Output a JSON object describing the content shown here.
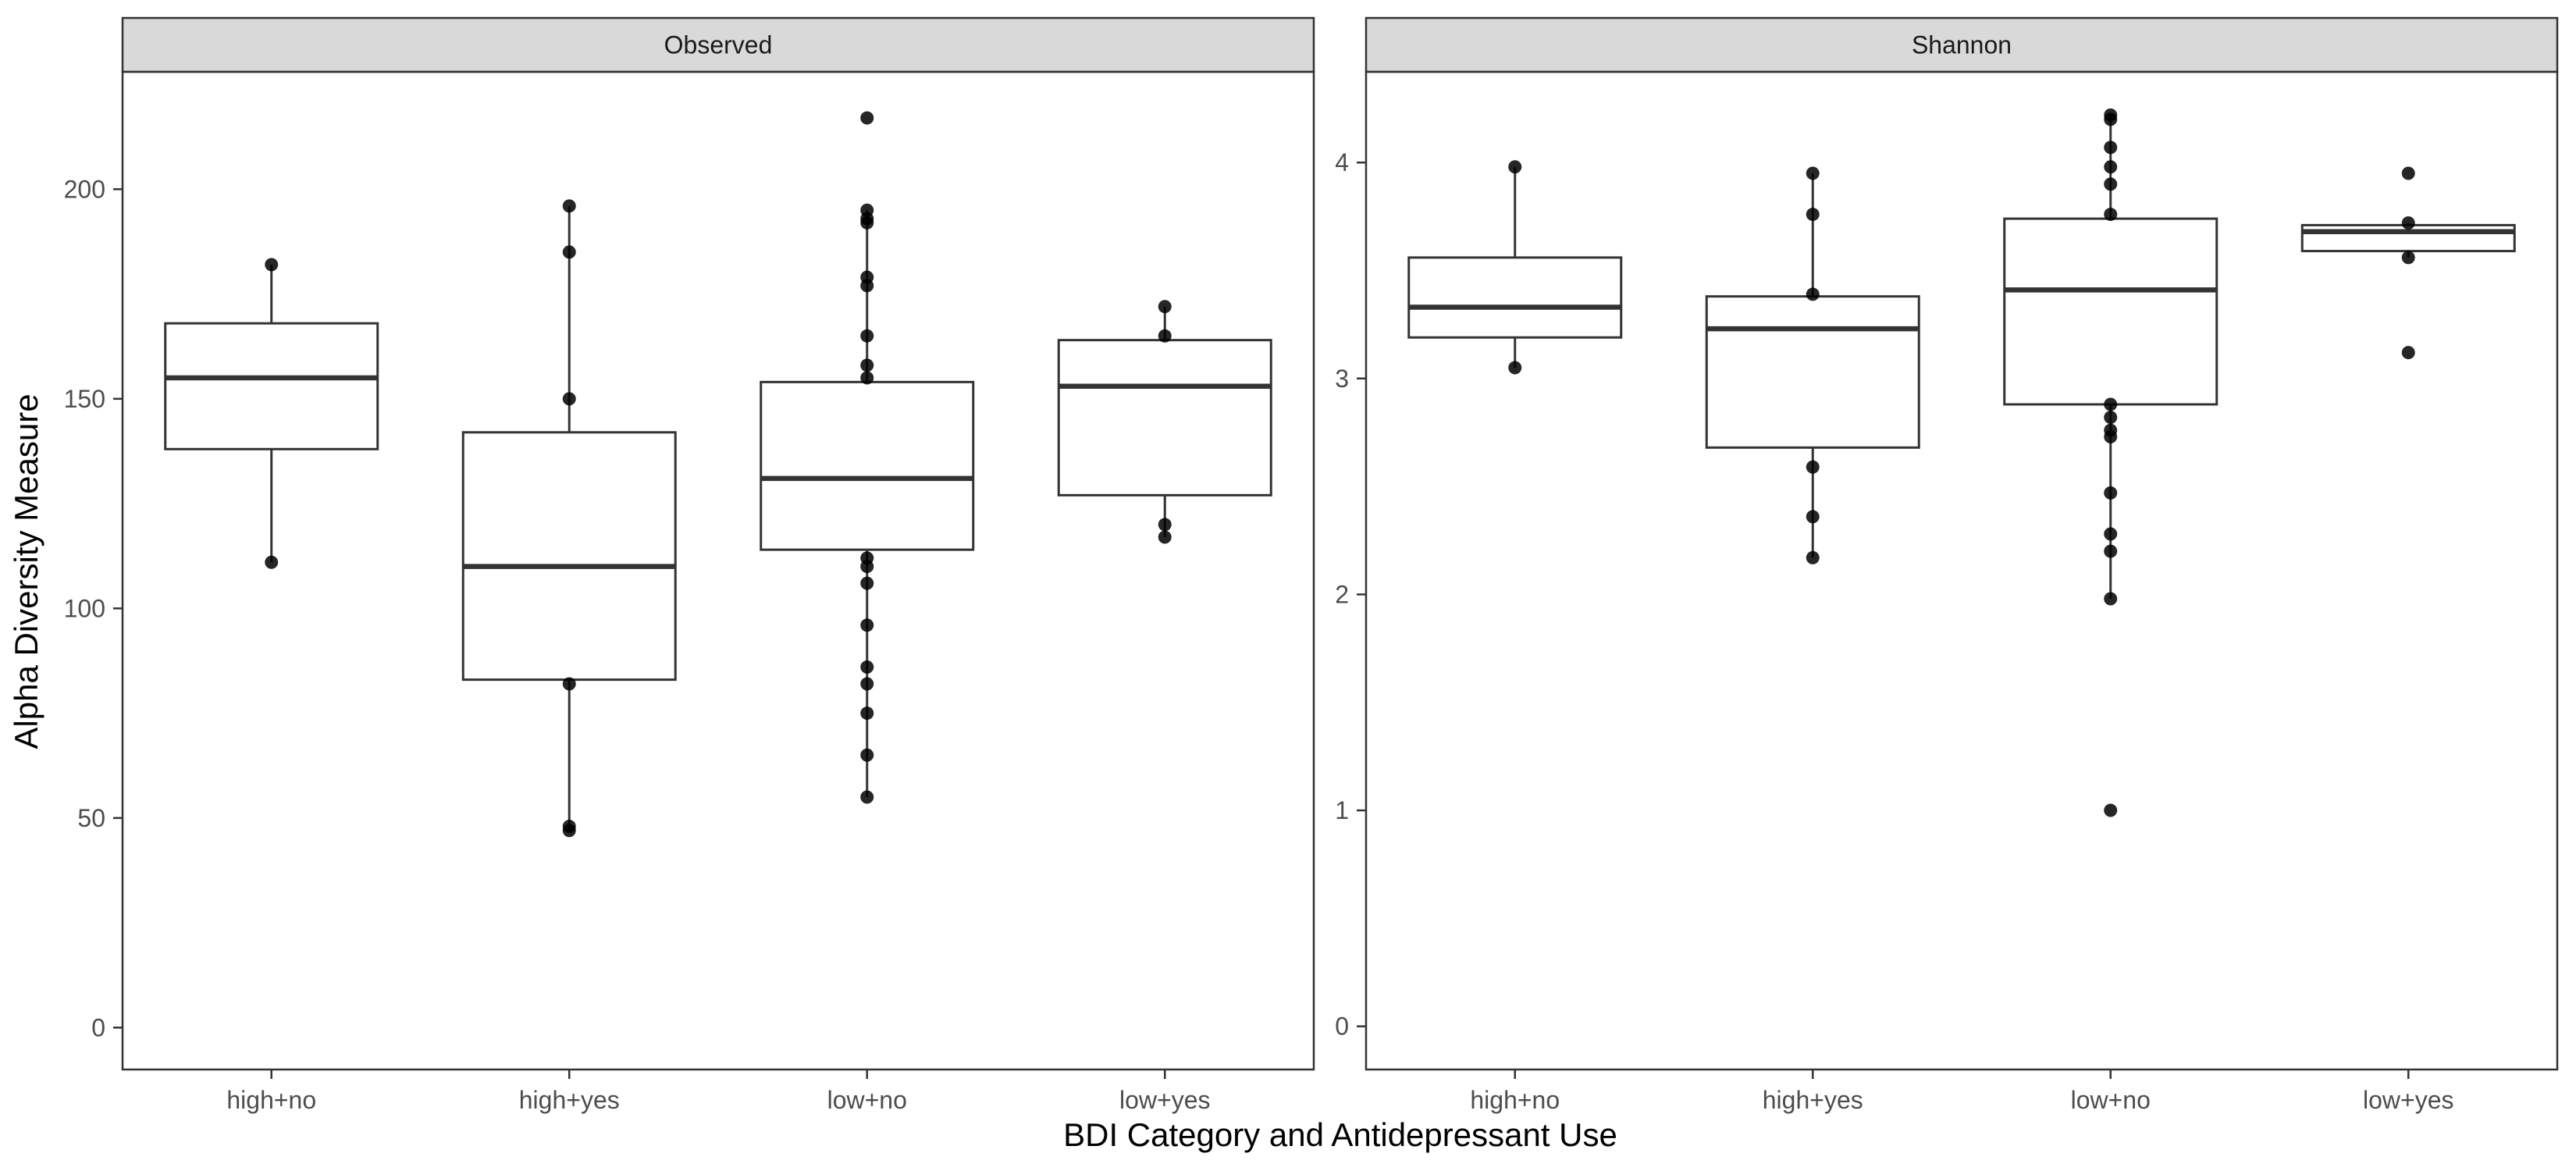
{
  "chart_data": [
    {
      "type": "box",
      "panel_title": "Observed",
      "categories": [
        "high+no",
        "high+yes",
        "low+no",
        "low+yes"
      ],
      "ylim": [
        -10,
        228
      ],
      "yticks": [
        0,
        50,
        100,
        150,
        200
      ],
      "ytick_labels": [
        "0",
        "50",
        "100",
        "150",
        "200"
      ],
      "boxes": [
        {
          "category": "high+no",
          "q1": 138,
          "median": 155,
          "q3": 168,
          "whisker_low": 111,
          "whisker_high": 182
        },
        {
          "category": "high+yes",
          "q1": 83,
          "median": 110,
          "q3": 142,
          "whisker_low": 47,
          "whisker_high": 196
        },
        {
          "category": "low+no",
          "q1": 114,
          "median": 131,
          "q3": 154,
          "whisker_low": 55,
          "whisker_high": 195
        },
        {
          "category": "low+yes",
          "q1": 127,
          "median": 153,
          "q3": 164,
          "whisker_low": 117,
          "whisker_high": 172
        }
      ],
      "points": [
        {
          "category": "high+no",
          "values": [
            182,
            111
          ]
        },
        {
          "category": "high+yes",
          "values": [
            196,
            185,
            150,
            82,
            48,
            47
          ]
        },
        {
          "category": "low+no",
          "values": [
            217,
            195,
            193,
            192,
            179,
            177,
            165,
            158,
            155,
            112,
            110,
            106,
            96,
            86,
            82,
            75,
            65,
            55
          ]
        },
        {
          "category": "low+yes",
          "values": [
            172,
            165,
            120,
            117
          ]
        }
      ]
    },
    {
      "type": "box",
      "panel_title": "Shannon",
      "categories": [
        "high+no",
        "high+yes",
        "low+no",
        "low+yes"
      ],
      "ylim": [
        -0.2,
        4.42
      ],
      "yticks": [
        0,
        1,
        2,
        3,
        4
      ],
      "ytick_labels": [
        "0",
        "1",
        "2",
        "3",
        "4"
      ],
      "boxes": [
        {
          "category": "high+no",
          "q1": 3.19,
          "median": 3.33,
          "q3": 3.56,
          "whisker_low": 3.05,
          "whisker_high": 3.98
        },
        {
          "category": "high+yes",
          "q1": 2.68,
          "median": 3.23,
          "q3": 3.38,
          "whisker_low": 2.17,
          "whisker_high": 3.95
        },
        {
          "category": "low+no",
          "q1": 2.88,
          "median": 3.41,
          "q3": 3.74,
          "whisker_low": 1.98,
          "whisker_high": 4.22
        },
        {
          "category": "low+yes",
          "q1": 3.59,
          "median": 3.68,
          "q3": 3.71,
          "whisker_low": 3.56,
          "whisker_high": 3.72
        }
      ],
      "points": [
        {
          "category": "high+no",
          "values": [
            3.98,
            3.05
          ]
        },
        {
          "category": "high+yes",
          "values": [
            3.95,
            3.76,
            3.39,
            2.59,
            2.36,
            2.17
          ]
        },
        {
          "category": "low+no",
          "values": [
            4.22,
            4.2,
            4.07,
            3.98,
            3.9,
            3.76,
            2.88,
            2.82,
            2.76,
            2.73,
            2.47,
            2.28,
            2.2,
            1.98,
            1.0
          ]
        },
        {
          "category": "low+yes",
          "values": [
            3.95,
            3.72,
            3.56,
            3.12
          ]
        }
      ]
    }
  ],
  "shared_axes": {
    "ylabel": "Alpha Diversity Measure",
    "xlabel": "BDI Category and Antidepressant Use"
  },
  "colors": {
    "strip_fill": "#d9d9d9",
    "box_stroke": "#333333",
    "point": "#000000",
    "panel_border": "#333333",
    "tick_text": "#4d4d4d"
  }
}
